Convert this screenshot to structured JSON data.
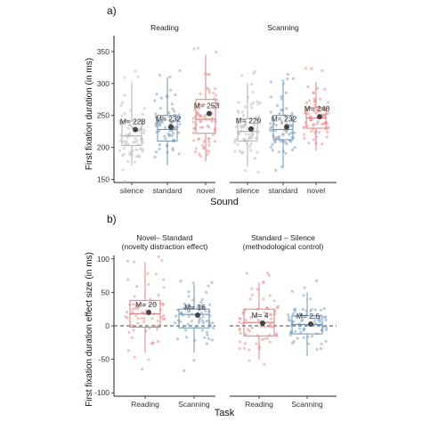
{
  "chart_data": [
    {
      "type": "box",
      "panel_tag": "a)",
      "facets": [
        "Reading",
        "Scanning"
      ],
      "categories": [
        "silence",
        "standard",
        "novel"
      ],
      "xlabel": "Sound",
      "ylabel": "First fixation duration (in ms)",
      "ylim": [
        145,
        375
      ],
      "yticks": [
        150,
        200,
        250,
        300,
        350
      ],
      "colors": {
        "silence": "#b2b2b2",
        "standard": "#6d93b3",
        "novel": "#e08080"
      },
      "groups": [
        {
          "facet": "Reading",
          "category": "silence",
          "q1": 203,
          "median": 218,
          "q3": 241,
          "whisker_low": 172,
          "whisker_high": 302,
          "mean": 228,
          "mean_label": "M= 228"
        },
        {
          "facet": "Reading",
          "category": "standard",
          "q1": 210,
          "median": 228,
          "q3": 250,
          "whisker_low": 172,
          "whisker_high": 310,
          "mean": 232,
          "mean_label": "M= 232"
        },
        {
          "facet": "Reading",
          "category": "novel",
          "q1": 222,
          "median": 244,
          "q3": 275,
          "whisker_low": 178,
          "whisker_high": 345,
          "mean": 253,
          "mean_label": "M= 253"
        },
        {
          "facet": "Scanning",
          "category": "silence",
          "q1": 210,
          "median": 225,
          "q3": 245,
          "whisker_low": 170,
          "whisker_high": 300,
          "mean": 229,
          "mean_label": "M= 229"
        },
        {
          "facet": "Scanning",
          "category": "standard",
          "q1": 212,
          "median": 228,
          "q3": 250,
          "whisker_low": 168,
          "whisker_high": 300,
          "mean": 232,
          "mean_label": "M= 232"
        },
        {
          "facet": "Scanning",
          "category": "novel",
          "q1": 230,
          "median": 246,
          "q3": 262,
          "whisker_low": 195,
          "whisker_high": 302,
          "mean": 248,
          "mean_label": "M= 248"
        }
      ]
    },
    {
      "type": "box",
      "panel_tag": "b)",
      "facets": [
        "Novel– Standard\n(novelty distraction effect)",
        "Standard – Silence\n(methodological control)"
      ],
      "categories": [
        "Reading",
        "Scanning"
      ],
      "xlabel": "Task",
      "ylabel": "First fixation duration effect size (in ms)",
      "ylim": [
        -105,
        105
      ],
      "yticks": [
        -100,
        -50,
        0,
        50,
        100
      ],
      "reference_line": 0,
      "colors": {
        "facet1": "#e08080",
        "facet2": "#6d93b3"
      },
      "groups": [
        {
          "facet": 1,
          "category": "Reading",
          "color": "#e08080",
          "q1": -2,
          "median": 18,
          "q3": 38,
          "whisker_low": -40,
          "whisker_high": 95,
          "mean": 20,
          "mean_label": "M= 20"
        },
        {
          "facet": 1,
          "category": "Scanning",
          "color": "#6d93b3",
          "q1": -3,
          "median": 17,
          "q3": 25,
          "whisker_low": -40,
          "whisker_high": 62,
          "mean": 16,
          "mean_label": "M= 16"
        },
        {
          "facet": 2,
          "category": "Reading",
          "color": "#e08080",
          "q1": -15,
          "median": 5,
          "q3": 25,
          "whisker_low": -50,
          "whisker_high": 65,
          "mean": 4,
          "mean_label": "M= 4"
        },
        {
          "facet": 2,
          "category": "Scanning",
          "color": "#6d93b3",
          "q1": -12,
          "median": 2,
          "q3": 15,
          "whisker_low": -45,
          "whisker_high": 50,
          "mean": 2.6,
          "mean_label": "M= 2.6"
        }
      ]
    }
  ]
}
